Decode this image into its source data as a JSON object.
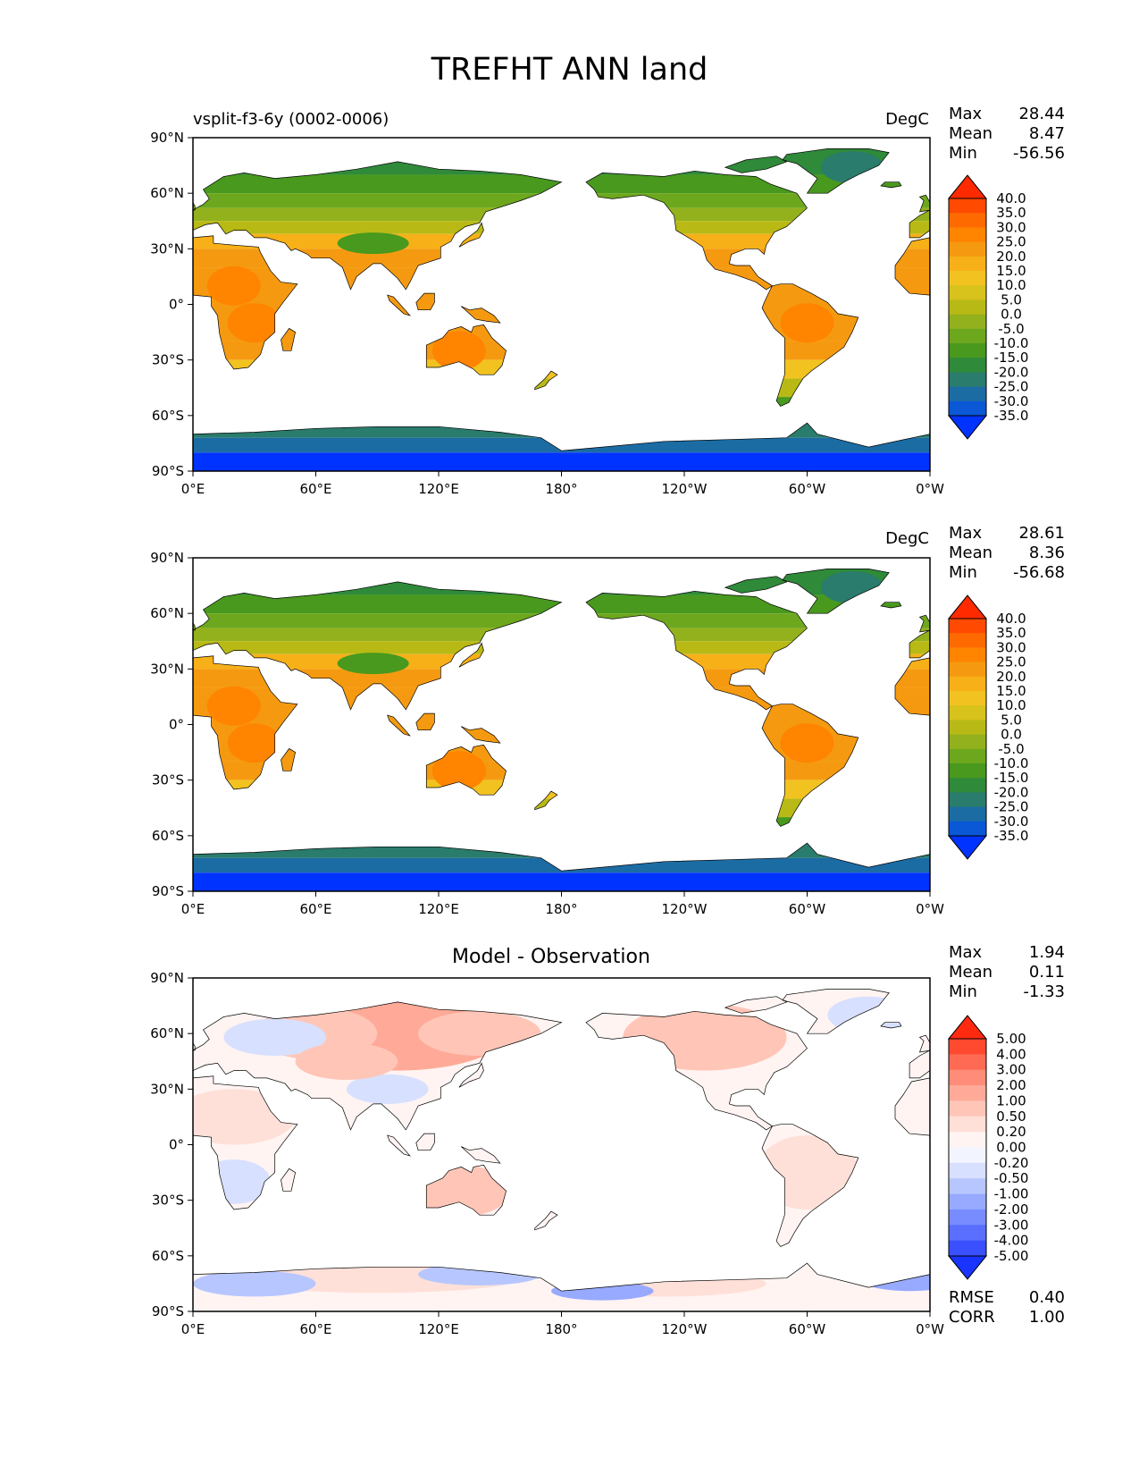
{
  "figure": {
    "title": "TREFHT ANN land",
    "lat_ticks": [
      "90°N",
      "60°N",
      "30°N",
      "0°",
      "30°S",
      "60°S",
      "90°S"
    ],
    "lon_ticks": [
      "0°E",
      "60°E",
      "120°E",
      "180°",
      "120°W",
      "60°W",
      "0°W"
    ]
  },
  "panels": [
    {
      "left_title": "vsplit-f3-6y (0002-0006)",
      "center_title": "",
      "units": "DegC",
      "stats": [
        {
          "label": "Max",
          "value": "28.44"
        },
        {
          "label": "Mean",
          "value": "8.47"
        },
        {
          "label": "Min",
          "value": "-56.56"
        }
      ],
      "colorbar": {
        "levels": [
          "40.0",
          "35.0",
          "30.0",
          "25.0",
          "20.0",
          "15.0",
          "10.0",
          "5.0",
          "0.0",
          "-5.0",
          "-10.0",
          "-15.0",
          "-20.0",
          "-25.0",
          "-30.0",
          "-35.0"
        ],
        "colors": [
          "#ff2a00",
          "#ff4a00",
          "#ff6a00",
          "#ff8400",
          "#f59a10",
          "#f7b018",
          "#f2c320",
          "#d8c21c",
          "#b9b916",
          "#93b11c",
          "#6da71e",
          "#48991e",
          "#2f8a3a",
          "#2a7c6c",
          "#1c6ca4",
          "#0a58d6",
          "#0033ff"
        ]
      }
    },
    {
      "left_title": "",
      "center_title": "",
      "units": "DegC",
      "stats": [
        {
          "label": "Max",
          "value": "28.61"
        },
        {
          "label": "Mean",
          "value": "8.36"
        },
        {
          "label": "Min",
          "value": "-56.68"
        }
      ],
      "colorbar": {
        "levels": [
          "40.0",
          "35.0",
          "30.0",
          "25.0",
          "20.0",
          "15.0",
          "10.0",
          "5.0",
          "0.0",
          "-5.0",
          "-10.0",
          "-15.0",
          "-20.0",
          "-25.0",
          "-30.0",
          "-35.0"
        ],
        "colors": [
          "#ff2a00",
          "#ff4a00",
          "#ff6a00",
          "#ff8400",
          "#f59a10",
          "#f7b018",
          "#f2c320",
          "#d8c21c",
          "#b9b916",
          "#93b11c",
          "#6da71e",
          "#48991e",
          "#2f8a3a",
          "#2a7c6c",
          "#1c6ca4",
          "#0a58d6",
          "#0033ff"
        ]
      }
    },
    {
      "left_title": "",
      "center_title": "Model - Observation",
      "units": "",
      "stats": [
        {
          "label": "Max",
          "value": "1.94"
        },
        {
          "label": "Mean",
          "value": "0.11"
        },
        {
          "label": "Min",
          "value": "-1.33"
        }
      ],
      "extra_stats": [
        {
          "label": "RMSE",
          "value": "0.40"
        },
        {
          "label": "CORR",
          "value": "1.00"
        }
      ],
      "colorbar": {
        "levels": [
          "5.00",
          "4.00",
          "3.00",
          "2.00",
          "1.00",
          "0.50",
          "0.20",
          "0.00",
          "-0.20",
          "-0.50",
          "-1.00",
          "-2.00",
          "-3.00",
          "-4.00",
          "-5.00"
        ],
        "colors": [
          "#ff2a10",
          "#ff4a30",
          "#ff6a55",
          "#ff8c78",
          "#ffaa98",
          "#ffc6b8",
          "#ffe0d8",
          "#fff4f2",
          "#f2f4ff",
          "#d8e0ff",
          "#b8c6ff",
          "#98aaff",
          "#788cff",
          "#5a6eff",
          "#3a50ff",
          "#1a34ff"
        ]
      }
    }
  ]
}
